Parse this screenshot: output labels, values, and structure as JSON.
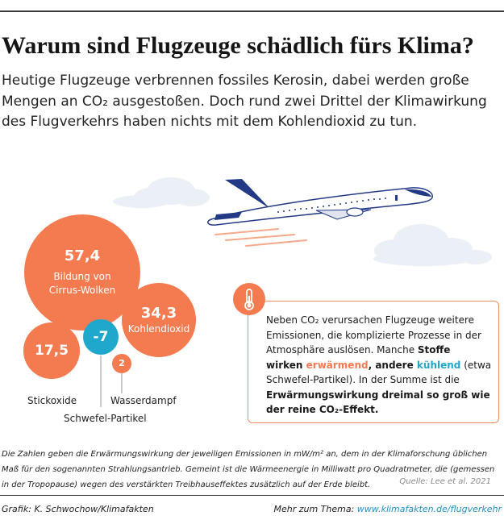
{
  "header": {
    "title": "Warum sind Flugzeuge schädlich fürs Klima?",
    "intro": "Heutige Flugzeuge verbrennen fossiles Kerosin, dabei werden große Mengen an CO₂ ausgestoßen. Doch rund zwei Drittel der Klimawirkung des Flugverkehrs haben nichts mit dem Kohlendioxid zu tun."
  },
  "bubbles": {
    "cirrus": {
      "value": "57,4",
      "label_line1": "Bildung von",
      "label_line2": "Cirrus-Wolken"
    },
    "co2": {
      "value": "34,3",
      "label": "Kohlendioxid"
    },
    "nox": {
      "value": "17,5",
      "label": "Stickoxide"
    },
    "sulfur": {
      "value": "-7",
      "label": "Schwefel-Partikel"
    },
    "water": {
      "value": "2",
      "label": "Wasserdampf"
    }
  },
  "info": {
    "p1": "Neben CO₂ verursachen Flugzeuge weitere Emissionen, die komplizierte Prozesse in der Atmosphäre auslösen. Manche ",
    "stoffe": "Stoffe",
    "wirken": "wirken ",
    "warm": "erwärmend",
    "andere": ", andere ",
    "cool": "kühlend",
    "p2": " (etwa Schwefel-Partikel). In der Summe ist die ",
    "bold_end": "Erwärmungswirkung dreimal so groß wie der reine CO₂-Effekt."
  },
  "footnote": "Die Zahlen geben die Erwärmungswirkung der jeweiligen Emissionen in mW/m² an, dem in der Klimaforschung üblichen Maß für den sogenannten Strahlungsantrieb. Gemeint ist die Wärmeenergie in Milliwatt pro Quadratmeter, die (gemessen in der Tropopause) wegen des verstärkten Treibhauseffektes zusätzlich auf der Erde bleibt.",
  "source": "Quelle: Lee et al. 2021",
  "footer": {
    "credit": "Grafik: K. Schwochow/Klimafakten",
    "more_prefix": "Mehr zum Thema: ",
    "more_link": "www.klimafakten.de/flugverkehr"
  },
  "colors": {
    "warming": "#f47a50",
    "cooling": "#20a7cc",
    "plane_blue": "#223a86"
  },
  "icons": [
    "airplane-icon",
    "cloud-icon",
    "thermometer-icon"
  ]
}
